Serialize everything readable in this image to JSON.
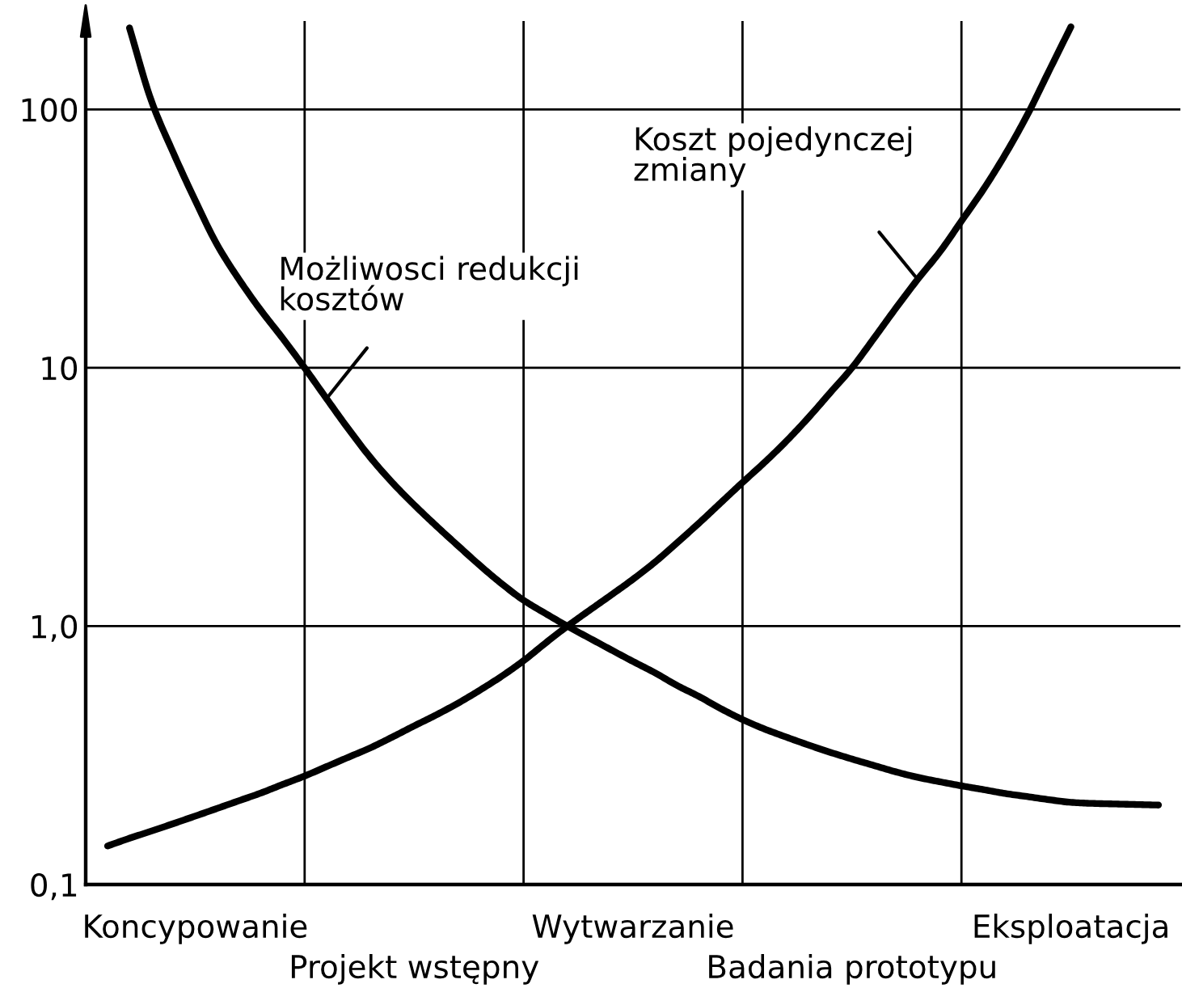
{
  "chart_data": {
    "type": "line",
    "log": true,
    "grid": true,
    "line_style": "solid",
    "marker": "none",
    "categories": [
      null,
      null,
      null,
      null,
      null,
      "Koncypowanie",
      null,
      null,
      null,
      null,
      null,
      null,
      null,
      null,
      null,
      "Projekt wstępny",
      null,
      null,
      null,
      null,
      null,
      null,
      null,
      null,
      null,
      "Wytwarzanie",
      null,
      null,
      null,
      null,
      null,
      null,
      null,
      null,
      null,
      "Badania prototypu",
      null,
      null,
      null,
      null,
      null,
      null,
      null,
      null,
      null,
      "Eksploatacja",
      null,
      null,
      null,
      null,
      null
    ],
    "ylim": [
      0.1,
      220
    ],
    "yticks": [
      {
        "value": 0.1,
        "label": "0,1"
      },
      {
        "value": 1,
        "label": "1,0"
      },
      10,
      100
    ],
    "series": [
      {
        "name": "Możliwosci redukcji kosztów",
        "color": "#000000",
        "values": [
          null,
          null,
          207,
          108,
          68,
          44.5,
          30,
          22,
          16.7,
          13,
          10,
          7.6,
          5.8,
          4.5,
          3.6,
          2.95,
          2.45,
          2.05,
          1.72,
          1.46,
          1.26,
          1.12,
          1.0,
          0.9,
          0.81,
          0.73,
          0.66,
          0.59,
          0.535,
          0.48,
          0.435,
          0.4,
          0.372,
          0.347,
          0.325,
          0.306,
          0.289,
          0.273,
          0.26,
          0.25,
          0.241,
          0.233,
          0.225,
          0.219,
          0.213,
          0.208,
          0.206,
          0.205,
          0.204,
          0.203,
          null
        ]
      },
      {
        "name": "Koszt pojedynczej zmiany",
        "color": "#000000",
        "values": [
          null,
          0.141,
          0.151,
          0.161,
          0.172,
          0.184,
          0.197,
          0.211,
          0.226,
          0.244,
          0.263,
          0.286,
          0.311,
          0.338,
          0.372,
          0.411,
          0.453,
          0.503,
          0.565,
          0.64,
          0.735,
          0.86,
          1.0,
          1.15,
          1.32,
          1.52,
          1.77,
          2.1,
          2.5,
          3.0,
          3.6,
          4.3,
          5.2,
          6.4,
          8.0,
          10,
          13,
          17,
          22,
          28,
          37,
          49,
          67,
          95,
          141,
          209,
          null,
          null,
          null,
          null,
          null
        ]
      }
    ]
  }
}
